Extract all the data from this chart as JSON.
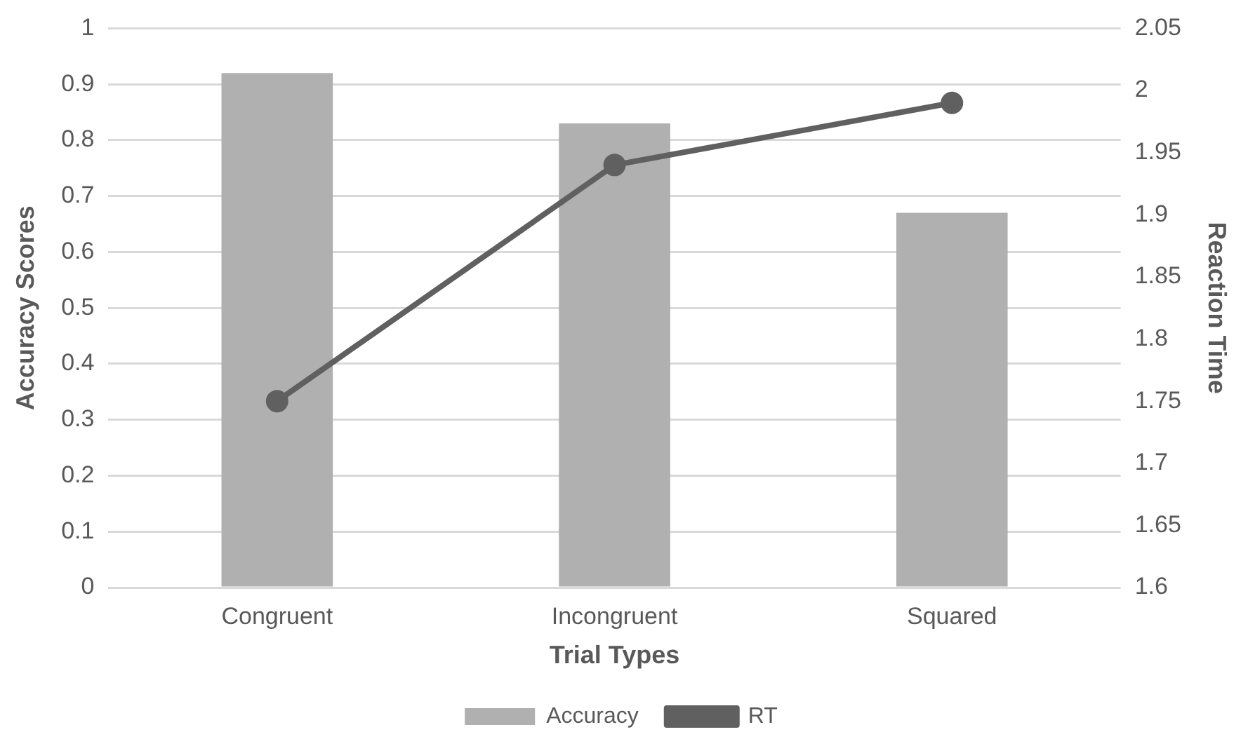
{
  "chart_data": {
    "type": "bar",
    "xlabel": "Trial Types",
    "ylabel": "Accuracy Scores",
    "y2label": "Reaction Time",
    "categories": [
      "Congruent",
      "Incongruent",
      "Squared"
    ],
    "series": [
      {
        "name": "Accuracy",
        "color": "#b0b0b0",
        "values": [
          0.92,
          0.83,
          0.67
        ]
      },
      {
        "name": "RT",
        "type": "line",
        "axis": "y2",
        "color": "#606060",
        "values": [
          1.75,
          1.94,
          1.99
        ]
      }
    ],
    "ylim": [
      0,
      1
    ],
    "yticks": [
      0,
      0.1,
      0.2,
      0.3,
      0.4,
      0.5,
      0.6,
      0.7,
      0.8,
      0.9,
      1
    ],
    "y2lim": [
      1.6,
      2.05
    ],
    "y2ticks": [
      1.6,
      1.65,
      1.7,
      1.75,
      1.8,
      1.85,
      1.9,
      1.95,
      2,
      2.05
    ],
    "grid": "y",
    "legend": "bottom",
    "marker": "circle",
    "line_style": "solid"
  }
}
